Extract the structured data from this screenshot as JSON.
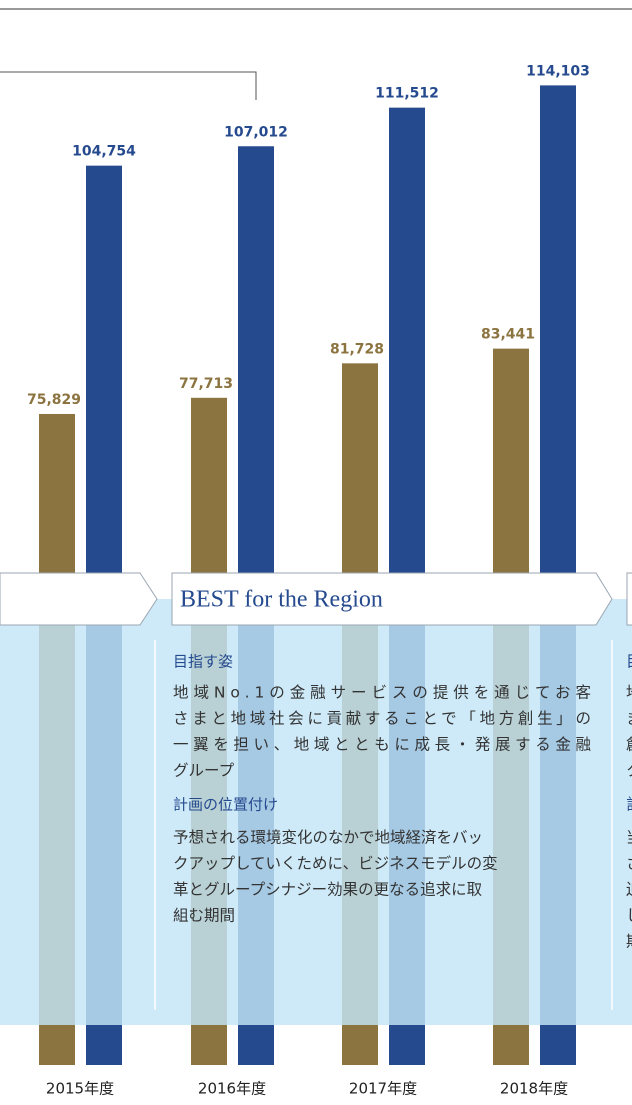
{
  "chart_data": {
    "type": "bar",
    "categories": [
      "2015年度",
      "2016年度",
      "2017年度",
      "2018年度"
    ],
    "series": [
      {
        "color": "#8c7440",
        "values": [
          75829,
          77713,
          81728,
          83441
        ],
        "value_labels": [
          "75,829",
          "77,713",
          "81,728",
          "83,441"
        ]
      },
      {
        "color": "#254a8e",
        "values": [
          104754,
          107012,
          111512,
          114103
        ],
        "value_labels": [
          "104,754",
          "107,012",
          "111,512",
          "114,103"
        ]
      }
    ],
    "ylim": [
      0,
      123000
    ],
    "panel": {
      "title": "BEST for the Region",
      "heading1": "目指す姿",
      "body1": [
        "地域No.1の金融サービスの提供を通じてお客",
        "さまと地域社会に貢献することで「地方創生」の",
        "一翼を担い、地域とともに成長・発展する金融",
        "グループ"
      ],
      "heading2": "計画の位置付け",
      "body2": [
        "予想される環境変化のなかで地域経済をバッ",
        "クアップしていくために、ビジネスモデルの変",
        "革とグループシナジー効果の更なる追求に取",
        "組む期間"
      ],
      "right_fragments": [
        "目",
        "地",
        "ま",
        "創",
        "ク",
        "計",
        "当",
        "さ",
        "迫",
        "し",
        "期"
      ]
    }
  }
}
